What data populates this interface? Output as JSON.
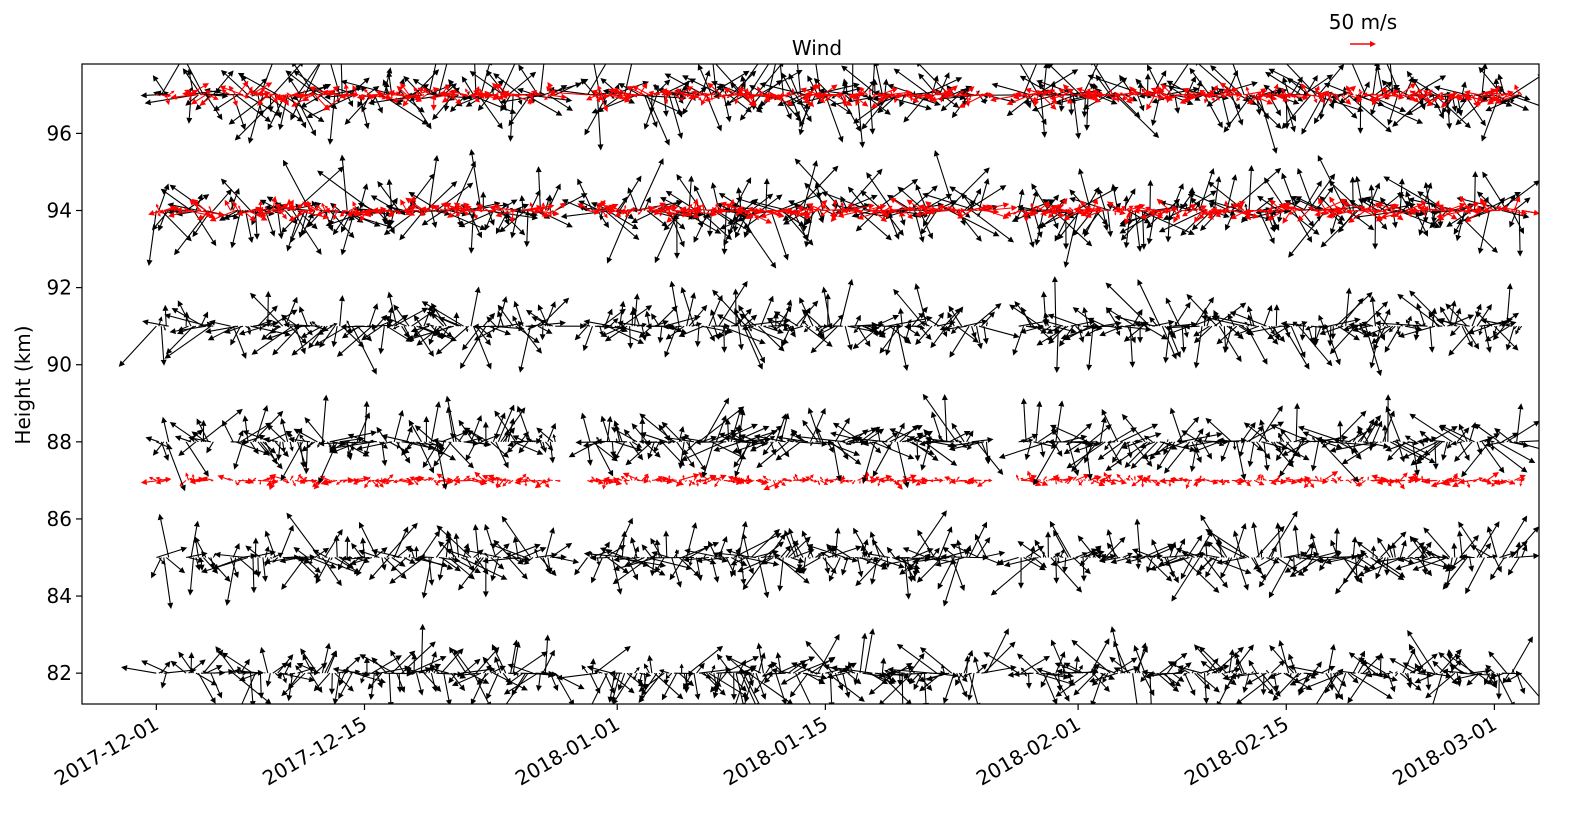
{
  "chart_data": {
    "type": "quiver",
    "title": "Wind",
    "ylabel": "Height (km)",
    "xlabel": "",
    "x_range": [
      "2017-11-26",
      "2018-03-04"
    ],
    "ylim": [
      81.2,
      97.8
    ],
    "x_ticks": [
      "2017-12-01",
      "2017-12-15",
      "2018-01-01",
      "2018-01-15",
      "2018-02-01",
      "2018-02-15",
      "2018-03-01"
    ],
    "y_ticks": [
      "82",
      "84",
      "86",
      "88",
      "90",
      "92",
      "94",
      "96"
    ],
    "key": {
      "label": "50 m/s",
      "speed": 50,
      "color": "#ff0000"
    },
    "grid": false,
    "series": [
      {
        "height_km": 82,
        "color": "#000000"
      },
      {
        "height_km": 85,
        "color": "#000000"
      },
      {
        "height_km": 87,
        "color": "#ff0000"
      },
      {
        "height_km": 88,
        "color": "#000000"
      },
      {
        "height_km": 91,
        "color": "#000000"
      },
      {
        "height_km": 94,
        "color": "#000000"
      },
      {
        "height_km": 94,
        "color": "#ff0000"
      },
      {
        "height_km": 97,
        "color": "#000000"
      },
      {
        "height_km": 97,
        "color": "#ff0000"
      }
    ],
    "data_segments": [
      [
        "2017-12-01",
        "2017-12-01"
      ],
      [
        "2017-12-03",
        "2017-12-04"
      ],
      [
        "2017-12-06",
        "2017-12-11"
      ],
      [
        "2017-12-12",
        "2017-12-14"
      ],
      [
        "2017-12-15",
        "2017-12-15"
      ],
      [
        "2017-12-16",
        "2017-12-27"
      ],
      [
        "2017-12-30",
        "2018-01-09"
      ],
      [
        "2018-01-09",
        "2018-01-25"
      ],
      [
        "2018-01-28",
        "2018-02-05"
      ],
      [
        "2018-02-06",
        "2018-02-28"
      ],
      [
        "2018-03-01",
        "2018-03-02"
      ]
    ]
  }
}
